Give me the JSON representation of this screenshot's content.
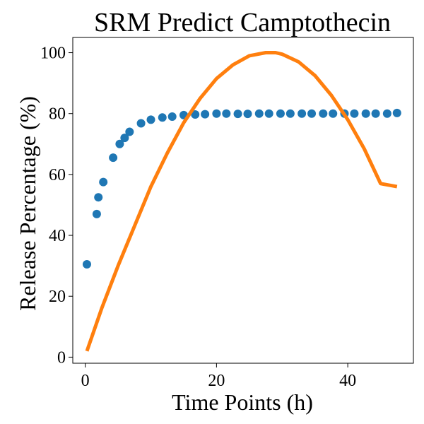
{
  "chart_data": {
    "type": "scatter",
    "title": "SRM Predict Camptothecin",
    "xlabel": "Time Points (h)",
    "ylabel": "Release Percentage (%)",
    "xlim": [
      -1.9,
      50
    ],
    "ylim": [
      -2,
      105
    ],
    "xticks": [
      0,
      20,
      40
    ],
    "yticks": [
      0,
      20,
      40,
      60,
      80,
      100
    ],
    "grid": false,
    "legend": false,
    "series": [
      {
        "kind": "scatter",
        "color": "#1f77b4",
        "points": [
          [
            0.25,
            30.5
          ],
          [
            1.75,
            47.0
          ],
          [
            2.0,
            52.5
          ],
          [
            2.75,
            57.5
          ],
          [
            4.25,
            65.5
          ],
          [
            5.25,
            70.0
          ],
          [
            6.0,
            72.0
          ],
          [
            6.75,
            74.0
          ],
          [
            8.5,
            76.8
          ],
          [
            10.0,
            78.0
          ],
          [
            11.75,
            78.7
          ],
          [
            13.25,
            79.0
          ],
          [
            15.0,
            79.5
          ],
          [
            16.75,
            79.7
          ],
          [
            18.25,
            79.8
          ],
          [
            20.0,
            80.0
          ],
          [
            21.5,
            80.0
          ],
          [
            23.25,
            79.9
          ],
          [
            24.75,
            79.9
          ],
          [
            26.5,
            80.0
          ],
          [
            28.0,
            80.0
          ],
          [
            29.75,
            80.0
          ],
          [
            31.25,
            80.0
          ],
          [
            33.0,
            80.0
          ],
          [
            34.5,
            80.0
          ],
          [
            36.25,
            80.0
          ],
          [
            37.75,
            80.0
          ],
          [
            39.5,
            80.0
          ],
          [
            41.0,
            80.0
          ],
          [
            42.75,
            80.0
          ],
          [
            44.25,
            80.0
          ],
          [
            46.0,
            80.0
          ],
          [
            47.5,
            80.2
          ]
        ]
      },
      {
        "kind": "line",
        "color": "#ff7f0e",
        "points": [
          [
            0.25,
            2.0
          ],
          [
            2.5,
            16.0
          ],
          [
            5.0,
            30.0
          ],
          [
            7.5,
            43.0
          ],
          [
            10.0,
            56.0
          ],
          [
            12.5,
            67.0
          ],
          [
            15.0,
            77.0
          ],
          [
            17.5,
            85.0
          ],
          [
            20.0,
            91.5
          ],
          [
            22.5,
            96.0
          ],
          [
            25.0,
            99.0
          ],
          [
            27.5,
            100.0
          ],
          [
            29.0,
            100.0
          ],
          [
            30.0,
            99.5
          ],
          [
            32.5,
            97.0
          ],
          [
            35.0,
            92.5
          ],
          [
            37.5,
            86.0
          ],
          [
            40.0,
            78.0
          ],
          [
            42.5,
            68.5
          ],
          [
            45.0,
            57.0
          ],
          [
            47.5,
            56.0
          ]
        ]
      }
    ]
  }
}
